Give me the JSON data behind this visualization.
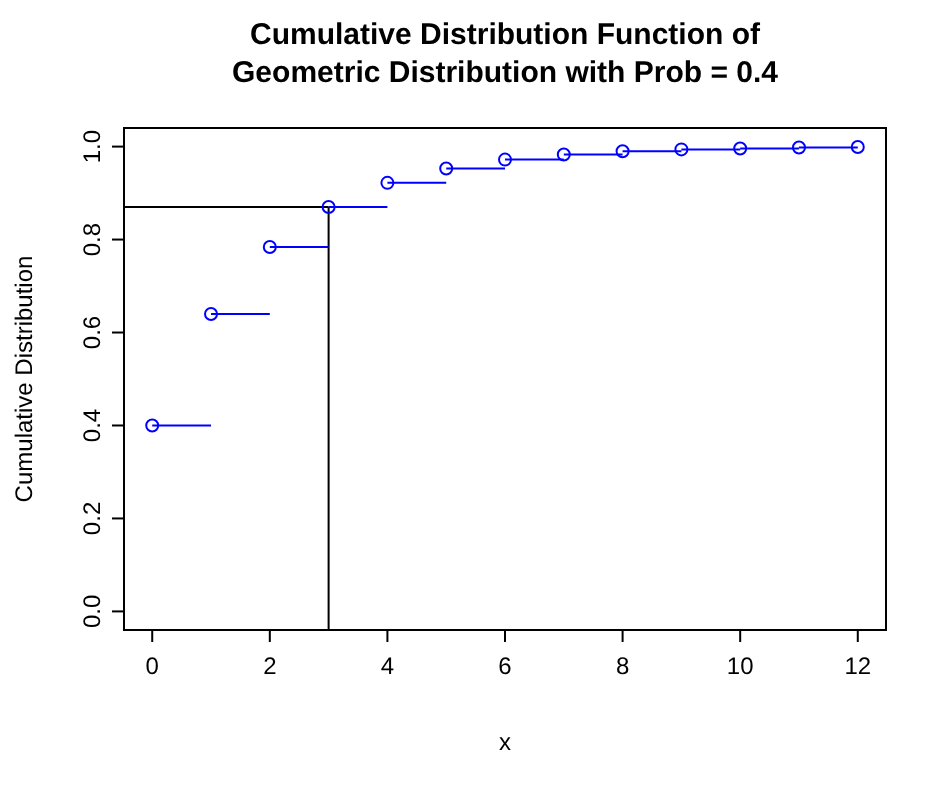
{
  "chart_data": {
    "type": "step",
    "title": "Cumulative Distribution Function of\nGeometric Distribution with Prob = 0.4",
    "xlabel": "x",
    "ylabel": "Cumulative Distribution",
    "x": [
      0,
      1,
      2,
      3,
      4,
      5,
      6,
      7,
      8,
      9,
      10,
      11,
      12
    ],
    "series": [
      {
        "color": "#0000ff",
        "values": [
          0.4,
          0.64,
          0.784,
          0.87,
          0.922,
          0.953,
          0.972,
          0.983,
          0.99,
          0.994,
          0.996,
          0.998,
          0.999
        ]
      }
    ],
    "marker": "circle",
    "xlim": [
      -0.48,
      12.48
    ],
    "ylim": [
      -0.04,
      1.04
    ],
    "xticks": [
      0,
      2,
      4,
      6,
      8,
      10,
      12
    ],
    "yticks": [
      {
        "value": 0,
        "label": "0.0"
      },
      {
        "value": 0.2,
        "label": "0.2"
      },
      {
        "value": 0.4,
        "label": "0.4"
      },
      {
        "value": 0.6,
        "label": "0.6"
      },
      {
        "value": 0.8,
        "label": "0.8"
      },
      {
        "value": 1,
        "label": "1.0"
      }
    ],
    "ref_lines": [
      {
        "axis": "y",
        "value": 0.87,
        "color": "#000000"
      },
      {
        "axis": "x",
        "value": 3,
        "color": "#000000"
      }
    ]
  }
}
